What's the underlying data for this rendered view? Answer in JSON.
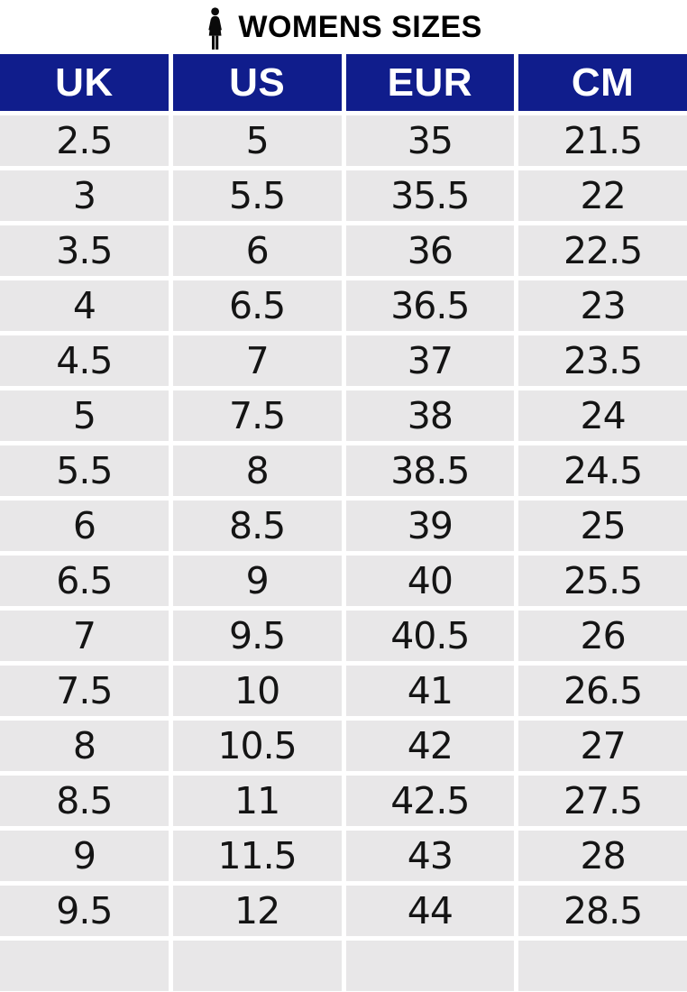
{
  "title": {
    "text": "WOMENS SIZES",
    "icon": "woman-icon"
  },
  "colors": {
    "header_bg": "#101d8c",
    "header_text": "#ffffff",
    "cell_bg": "#e8e7e8",
    "cell_text": "#141414",
    "separator": "#ffffff",
    "title_text": "#000000"
  },
  "chart_data": {
    "type": "table",
    "title": "WOMENS SIZES",
    "columns": [
      "UK",
      "US",
      "EUR",
      "CM"
    ],
    "rows": [
      [
        "2.5",
        "5",
        "35",
        "21.5"
      ],
      [
        "3",
        "5.5",
        "35.5",
        "22"
      ],
      [
        "3.5",
        "6",
        "36",
        "22.5"
      ],
      [
        "4",
        "6.5",
        "36.5",
        "23"
      ],
      [
        "4.5",
        "7",
        "37",
        "23.5"
      ],
      [
        "5",
        "7.5",
        "38",
        "24"
      ],
      [
        "5.5",
        "8",
        "38.5",
        "24.5"
      ],
      [
        "6",
        "8.5",
        "39",
        "25"
      ],
      [
        "6.5",
        "9",
        "40",
        "25.5"
      ],
      [
        "7",
        "9.5",
        "40.5",
        "26"
      ],
      [
        "7.5",
        "10",
        "41",
        "26.5"
      ],
      [
        "8",
        "10.5",
        "42",
        "27"
      ],
      [
        "8.5",
        "11",
        "42.5",
        "27.5"
      ],
      [
        "9",
        "11.5",
        "43",
        "28"
      ],
      [
        "9.5",
        "12",
        "44",
        "28.5"
      ]
    ],
    "trailing_empty_row": true,
    "layout": "4 equal columns, white gutters between cells, no outer margin"
  }
}
